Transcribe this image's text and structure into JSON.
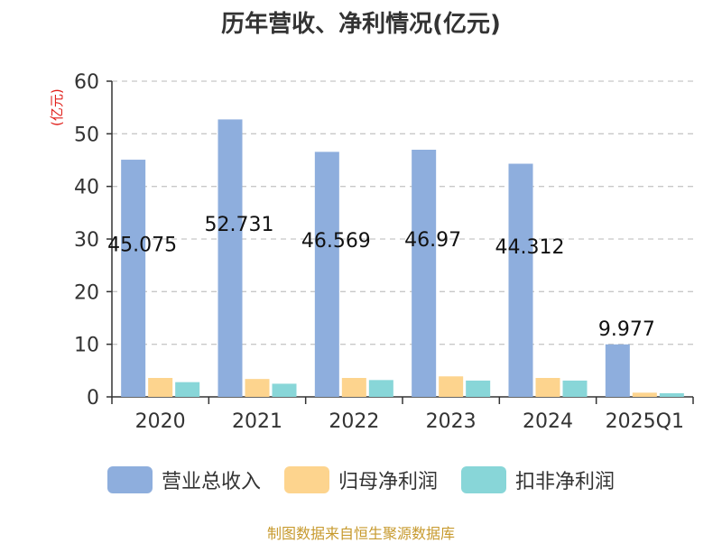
{
  "chart_data": {
    "type": "bar",
    "title": "历年营收、净利情况(亿元)",
    "ylabel": "(亿元)",
    "ylim": [
      0,
      60
    ],
    "yticks": [
      0,
      10,
      20,
      30,
      40,
      50,
      60
    ],
    "grid": true,
    "legend_position": "bottom",
    "categories": [
      "2020",
      "2021",
      "2022",
      "2023",
      "2024",
      "2025Q1"
    ],
    "series": [
      {
        "name": "营业总收入",
        "color": "#8eaedd",
        "values": [
          45.075,
          52.731,
          46.569,
          46.97,
          44.312,
          9.977
        ],
        "labels": [
          "45.075",
          "52.731",
          "46.569",
          "46.97",
          "44.312",
          "9.977"
        ]
      },
      {
        "name": "归母净利润",
        "color": "#fdd48e",
        "values": [
          3.6,
          3.4,
          3.6,
          3.9,
          3.6,
          0.8
        ]
      },
      {
        "name": "扣非净利润",
        "color": "#88d6d8",
        "values": [
          2.8,
          2.5,
          3.2,
          3.1,
          3.1,
          0.7
        ]
      }
    ]
  },
  "source": "制图数据来自恒生聚源数据库"
}
